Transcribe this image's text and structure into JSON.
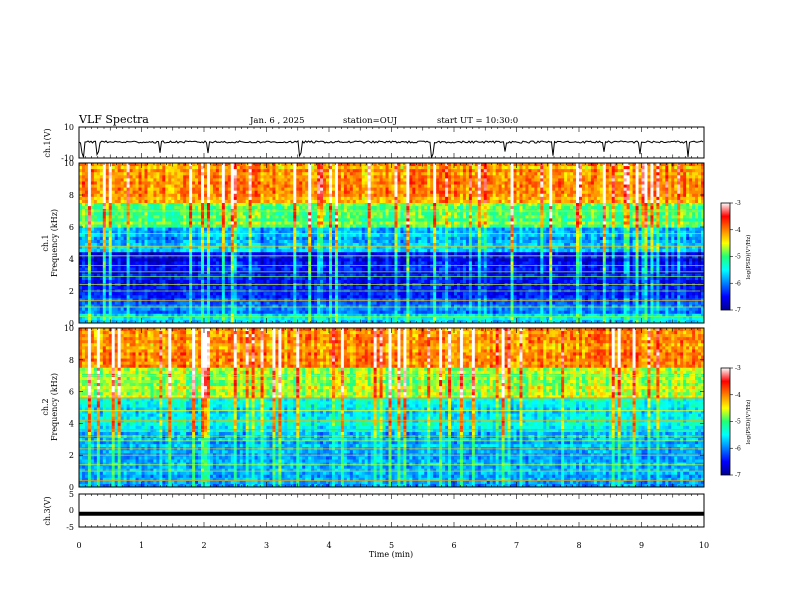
{
  "header": {
    "title": "VLF Spectra",
    "date": "Jan. 6 , 2025",
    "station": "station=OUJ",
    "start_ut": "start UT = 10:30:0"
  },
  "chart_data": [
    {
      "type": "line",
      "ylabel": "ch.1(V)",
      "ylim": [
        -10,
        10
      ],
      "yticks": [
        "10",
        "-10"
      ],
      "xlim": [
        0,
        10
      ],
      "description_value": "baseline approx. 0 V with short negative spikes"
    },
    {
      "type": "heatmap",
      "ylabel": "ch.1\nFrequency (kHz)",
      "ylabel_line1": "ch.1",
      "ylabel_line2": "Frequency (kHz)",
      "ylim": [
        0,
        10
      ],
      "yticks": [
        "0",
        "2",
        "4",
        "6",
        "8",
        "10"
      ],
      "xlim": [
        0,
        10
      ],
      "colorbar": {
        "label": "log(PSD)(V²/Hz)",
        "range": [
          -7,
          -3
        ],
        "ticks": [
          "-3",
          "-4",
          "-5",
          "-6",
          "-7"
        ],
        "colormap": "jet"
      }
    },
    {
      "type": "heatmap",
      "ylabel": "ch.2\nFrequency (kHz)",
      "ylabel_line1": "ch.2",
      "ylabel_line2": "Frequency (kHz)",
      "ylim": [
        0,
        10
      ],
      "yticks": [
        "0",
        "2",
        "4",
        "6",
        "8",
        "10"
      ],
      "xlim": [
        0,
        10
      ],
      "colorbar": {
        "label": "log(PSD)(V²/Hz)",
        "range": [
          -7,
          -3
        ],
        "ticks": [
          "-3",
          "-4",
          "-5",
          "-6",
          "-7"
        ],
        "colormap": "jet"
      }
    },
    {
      "type": "line",
      "ylabel": "ch.3(V)",
      "ylim": [
        -5,
        5
      ],
      "yticks": [
        "5",
        "0",
        "-5"
      ],
      "xlim": [
        0,
        10
      ],
      "constant_value": -1
    }
  ],
  "xaxis": {
    "label": "Time (min)",
    "ticks": [
      "0",
      "1",
      "2",
      "3",
      "4",
      "5",
      "6",
      "7",
      "8",
      "9",
      "10"
    ]
  }
}
